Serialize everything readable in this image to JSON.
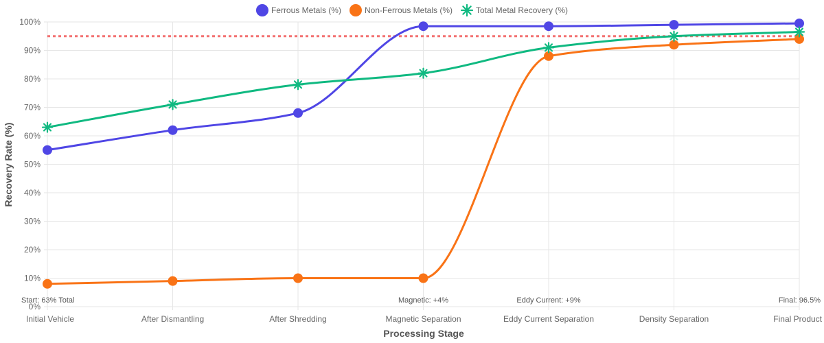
{
  "chart_data": {
    "type": "line",
    "categories": [
      "Initial Vehicle",
      "After Dismantling",
      "After Shredding",
      "Magnetic Separation",
      "Eddy Current Separation",
      "Density Separation",
      "Final Product"
    ],
    "series": [
      {
        "name": "Ferrous Metals (%)",
        "color": "#4f46e5",
        "marker": "circle",
        "values": [
          55,
          62,
          68,
          98.5,
          98.5,
          99,
          99.5
        ]
      },
      {
        "name": "Non-Ferrous Metals (%)",
        "color": "#f97316",
        "marker": "circle",
        "values": [
          8,
          9,
          10,
          10,
          88,
          92,
          94
        ]
      },
      {
        "name": "Total Metal Recovery (%)",
        "color": "#10b981",
        "marker": "star",
        "values": [
          63,
          71,
          78,
          82,
          91,
          95,
          96.5
        ]
      }
    ],
    "target_line": {
      "value": 95,
      "color": "#ef4444",
      "style": "dotted"
    },
    "xlabel": "Processing Stage",
    "ylabel": "Recovery Rate (%)",
    "ylim": [
      0,
      100
    ],
    "ytick_step": 10,
    "ytick_suffix": "%",
    "grid": true,
    "legend_position": "top-center",
    "annotations": [
      {
        "text": "Start: 63% Total",
        "category_index": 0,
        "align": "start"
      },
      {
        "text": "Magnetic: +4%",
        "category_index": 3,
        "align": "middle"
      },
      {
        "text": "Eddy Current: +9%",
        "category_index": 4,
        "align": "middle"
      },
      {
        "text": "Final: 96.5%",
        "category_index": 6,
        "align": "end"
      }
    ]
  }
}
